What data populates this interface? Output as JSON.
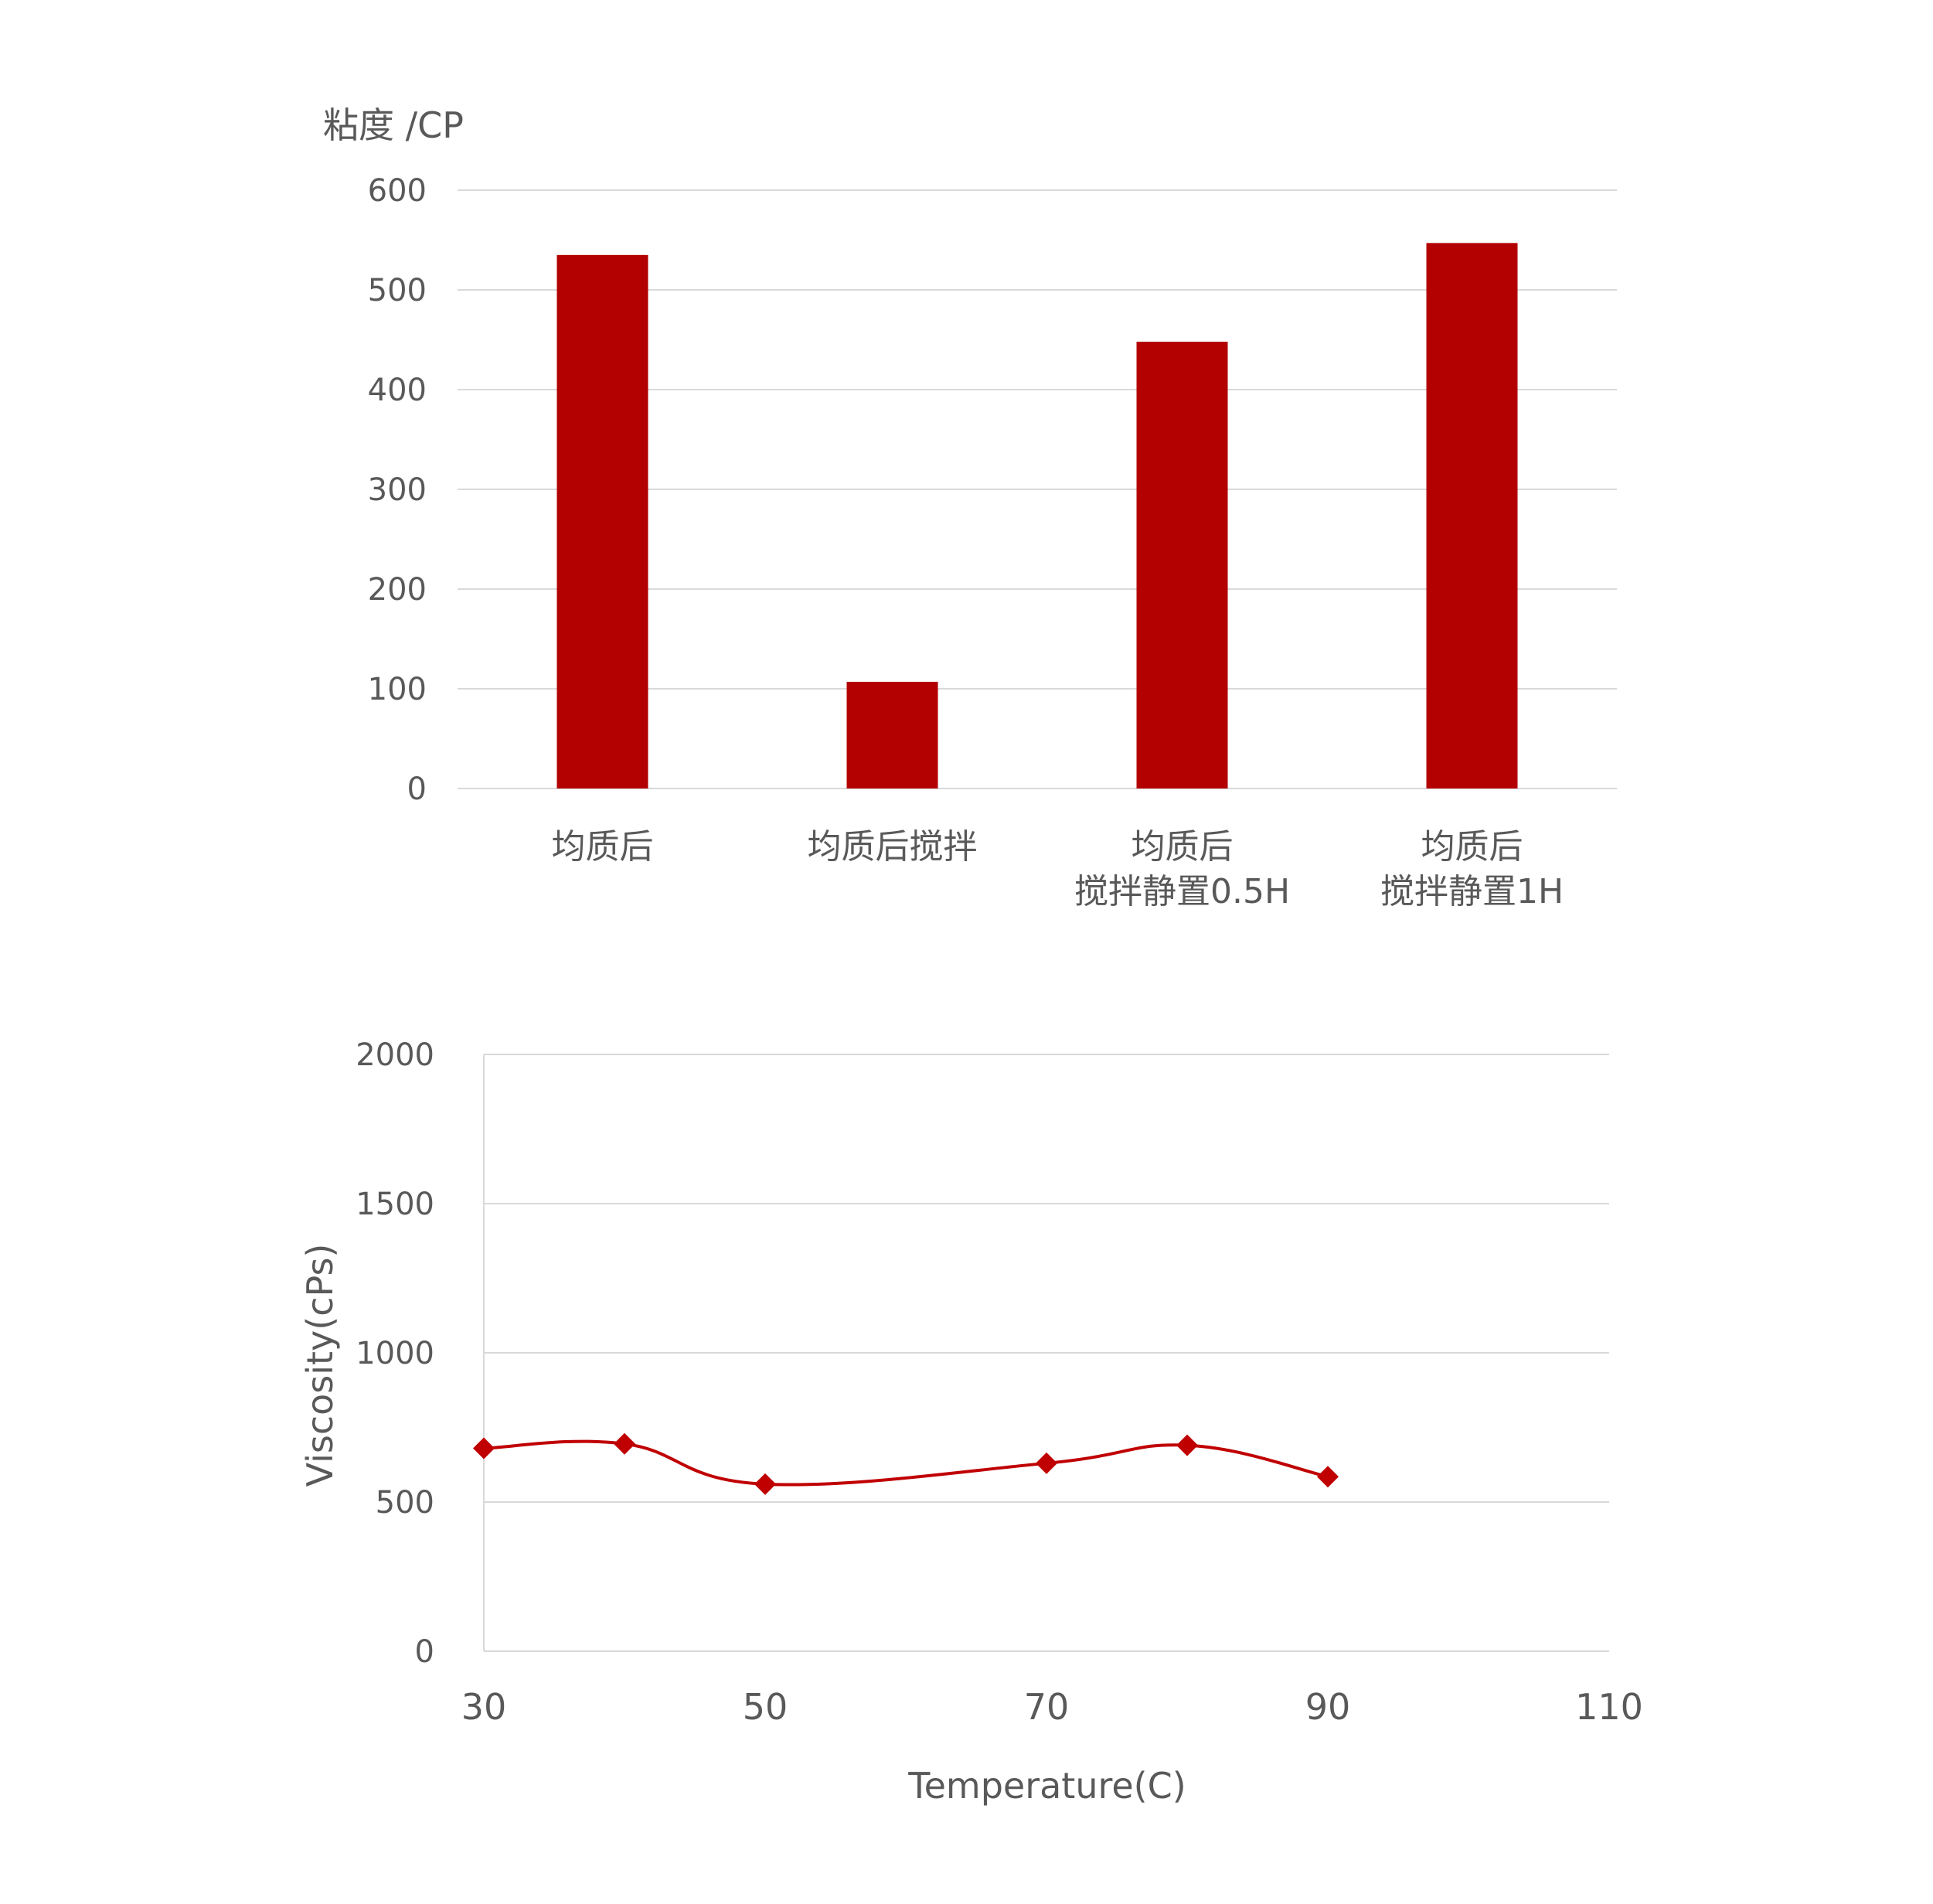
{
  "chart_data": [
    {
      "type": "bar",
      "ylabel": "粘度 /CP",
      "categories": [
        [
          "均质后"
        ],
        [
          "均质后搅拌"
        ],
        [
          "均质后",
          "搅拌静置0.5H"
        ],
        [
          "均质后",
          "搅拌静置1H"
        ]
      ],
      "values": [
        535,
        107,
        448,
        547
      ],
      "ylim": [
        0,
        600
      ],
      "yticks": [
        "0",
        "100",
        "200",
        "300",
        "400",
        "500",
        "600"
      ],
      "grid": true,
      "color": "#b30000"
    },
    {
      "type": "line",
      "xlabel": "Temperature(C)",
      "ylabel": "Viscosity(cPs)",
      "x": [
        30,
        40,
        50,
        70,
        80,
        90
      ],
      "y": [
        680,
        695,
        560,
        630,
        690,
        585
      ],
      "xlim": [
        30,
        110
      ],
      "ylim": [
        0,
        2000
      ],
      "xticks": [
        "30",
        "50",
        "70",
        "90",
        "110"
      ],
      "yticks": [
        "0",
        "500",
        "1000",
        "1500",
        "2000"
      ],
      "grid": true,
      "color": "#c00000",
      "marker": "diamond"
    }
  ]
}
